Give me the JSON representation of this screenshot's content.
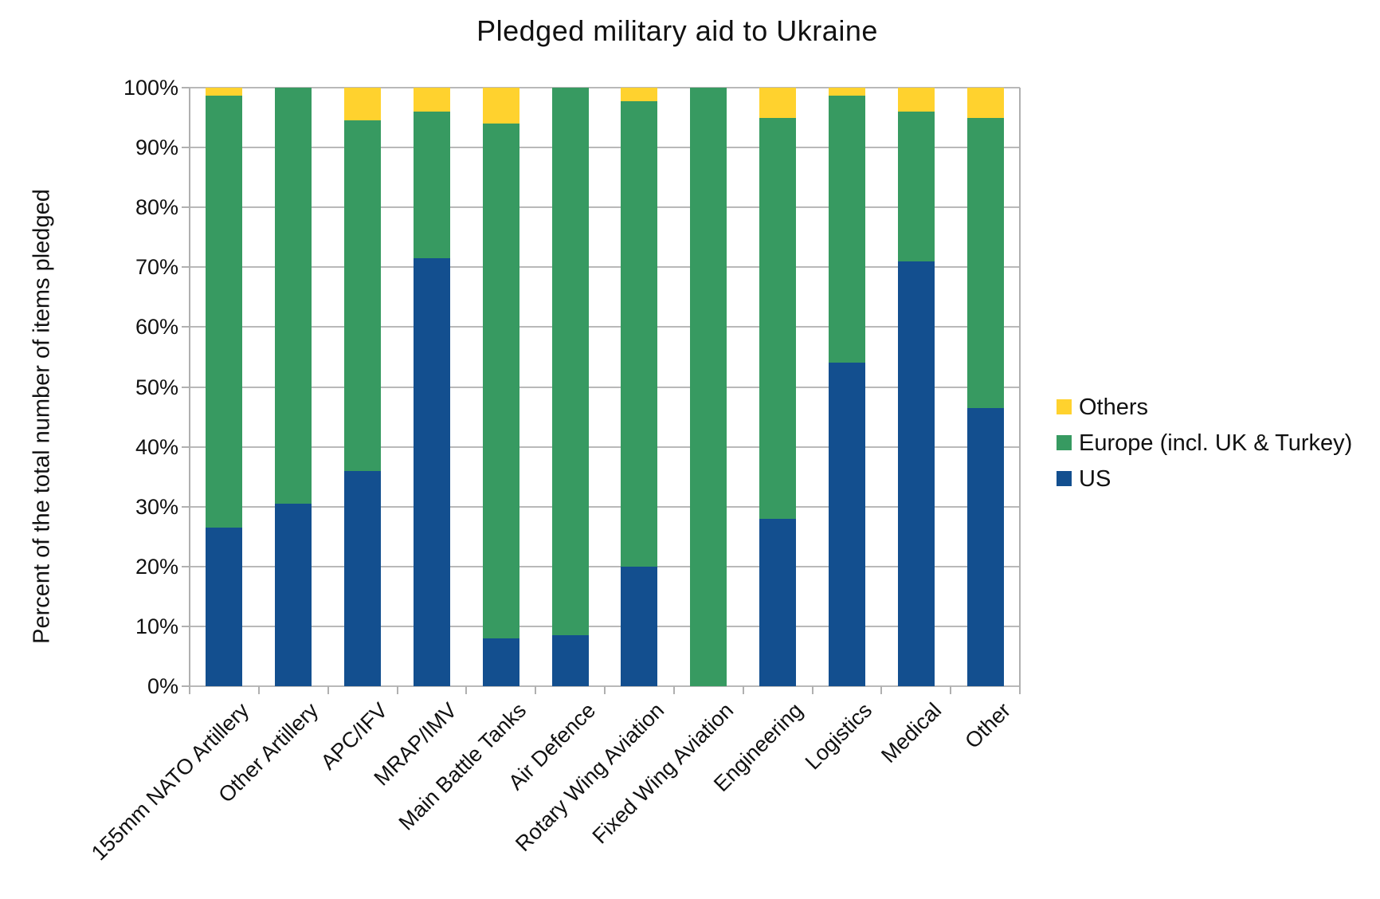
{
  "title": "Pledged military aid to Ukraine",
  "y_axis": {
    "title": "Percent of the total number of items pledged"
  },
  "legend": {
    "position": "right",
    "items": [
      {
        "label": "Others",
        "color": "#FFD22E"
      },
      {
        "label": "Europe (incl. UK & Turkey)",
        "color": "#379A61"
      },
      {
        "label": "US",
        "color": "#134F8F"
      }
    ]
  },
  "chart_data": {
    "type": "bar",
    "stacked": true,
    "title": "Pledged military aid to Ukraine",
    "xlabel": "",
    "ylabel": "Percent of the total number of items pledged",
    "ylim": [
      0,
      100
    ],
    "ytick_step": 10,
    "ytick_labels": [
      "0%",
      "10%",
      "20%",
      "30%",
      "40%",
      "50%",
      "60%",
      "70%",
      "80%",
      "90%",
      "100%"
    ],
    "grid": true,
    "legend_position": "right",
    "categories": [
      "155mm NATO Artillery",
      "Other Artillery",
      "APC/IFV",
      "MRAP/IMV",
      "Main Battle Tanks",
      "Air Defence",
      "Rotary Wing Aviation",
      "Fixed Wing Aviation",
      "Engineering",
      "Logistics",
      "Medical",
      "Other"
    ],
    "series": [
      {
        "name": "US",
        "color": "#134F8F",
        "values": [
          26.5,
          30.5,
          36.0,
          71.5,
          8.0,
          8.5,
          20.0,
          0.0,
          28.0,
          54.0,
          71.0,
          46.5
        ]
      },
      {
        "name": "Europe (incl. UK & Turkey)",
        "color": "#379A61",
        "values": [
          72.2,
          69.5,
          58.5,
          24.5,
          86.0,
          91.5,
          77.7,
          100.0,
          67.0,
          44.7,
          25.0,
          48.5
        ]
      },
      {
        "name": "Others",
        "color": "#FFD22E",
        "values": [
          1.3,
          0.0,
          5.5,
          4.0,
          6.0,
          0.0,
          2.3,
          0.0,
          5.0,
          1.3,
          4.0,
          5.0
        ]
      }
    ]
  }
}
